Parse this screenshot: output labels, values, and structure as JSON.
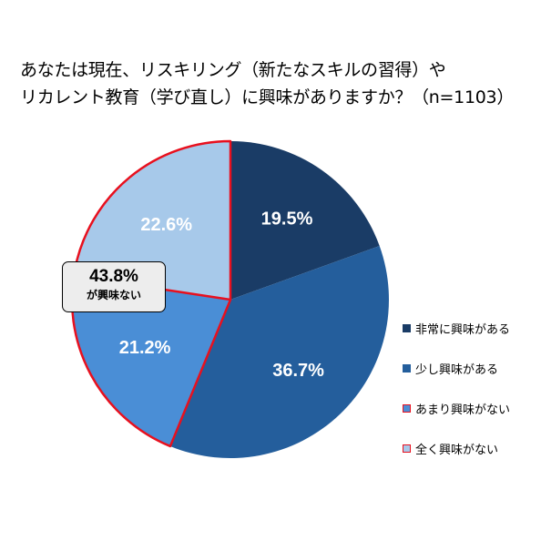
{
  "chart_data": {
    "type": "pie",
    "title": "あなたは現在、リスキリング（新たなスキルの習得）やリカレント教育（学び直し）に興味がありますか？（n=1103）",
    "title_lines": [
      "あなたは現在、リスキリング（新たなスキルの習得）や",
      "リカレント教育（学び直し）に興味がありますか？（n=1103）"
    ],
    "slices": [
      {
        "name": "非常に興味がある",
        "value": 19.5,
        "label": "19.5%",
        "color": "#1a3c66",
        "highlight": false
      },
      {
        "name": "少し興味がある",
        "value": 36.7,
        "label": "36.7%",
        "color": "#245e9c",
        "highlight": false
      },
      {
        "name": "あまり興味がない",
        "value": 21.2,
        "label": "21.2%",
        "color": "#4a8ed6",
        "highlight": true
      },
      {
        "name": "全く興味がない",
        "value": 22.6,
        "label": "22.6%",
        "color": "#a7c9ea",
        "highlight": true
      }
    ],
    "start_angle_deg": 0,
    "direction": "clockwise",
    "highlight_color": "#e8101e",
    "legend_position": "right",
    "annotation": {
      "value": "43.8%",
      "text": "が興味ない"
    }
  }
}
